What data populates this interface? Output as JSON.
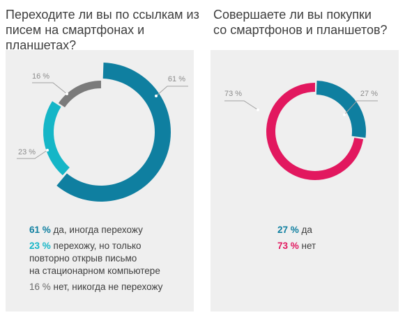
{
  "chart_data": [
    {
      "type": "pie",
      "title": "Переходите ли вы по ссылкам из\nписем на смартфонах и планшетах?",
      "series": [
        {
          "name": "да, иногда перехожу",
          "label": "61 %",
          "value": 61,
          "color": "#0f7fa0",
          "legend": "да, иногда перехожу"
        },
        {
          "name": "перехожу, но только повторно открыв письмо на стационарном компьютере",
          "label": "23 %",
          "value": 23,
          "color": "#15b6c7",
          "legend": "перехожу, но только\nповторно открыв письмо\nна стационарном компьютере"
        },
        {
          "name": "нет, никогда не перехожу",
          "label": "16 %",
          "value": 16,
          "color": "#7b7b7b",
          "legend": "нет, никогда не перехожу"
        }
      ],
      "legend_values": [
        "61 %",
        "23 %",
        "16 %"
      ]
    },
    {
      "type": "pie",
      "title": "Совершаете ли вы покупки\nсо смартфонов и планшетов?",
      "series": [
        {
          "name": "да",
          "label": "27 %",
          "value": 27,
          "color": "#0f7fa0",
          "legend": "да"
        },
        {
          "name": "нет",
          "label": "73 %",
          "value": 73,
          "color": "#e2185f",
          "legend": "нет"
        }
      ],
      "legend_values": [
        "27 %",
        "73 %"
      ]
    }
  ],
  "colors": {
    "blue": "#0f7fa0",
    "cyan": "#15b6c7",
    "gray": "#7b7b7b",
    "pink": "#e2185f",
    "label_gray": "#8b8b8b",
    "panel_bg": "#efefef"
  }
}
